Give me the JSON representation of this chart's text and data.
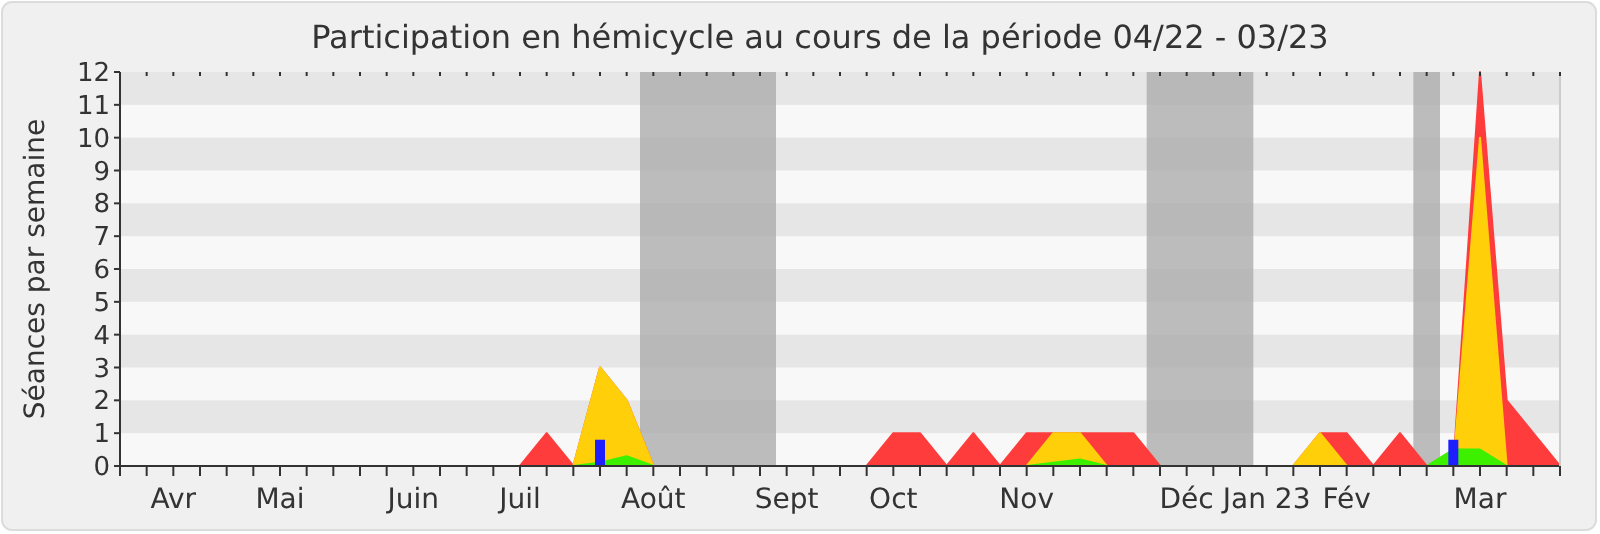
{
  "chart_data": {
    "type": "area",
    "title": "Participation en hémicycle au cours de la période 04/22 - 03/23",
    "ylabel": "Séances par semaine",
    "categories": [
      null,
      null,
      "Avr",
      null,
      null,
      null,
      "Mai",
      null,
      null,
      null,
      null,
      "Juin",
      null,
      null,
      null,
      "Juil",
      null,
      null,
      null,
      null,
      "Août",
      null,
      null,
      null,
      null,
      "Sept",
      null,
      null,
      null,
      "Oct",
      null,
      null,
      null,
      null,
      "Nov",
      null,
      null,
      null,
      null,
      null,
      "Déc",
      null,
      null,
      "Jan 23",
      null,
      null,
      "Fév",
      null,
      null,
      null,
      null,
      "Mar",
      null,
      null,
      null
    ],
    "ylim": [
      0,
      12
    ],
    "yticks": [
      0,
      1,
      2,
      3,
      4,
      5,
      6,
      7,
      8,
      9,
      10,
      11,
      12
    ],
    "series": [
      {
        "color": "#ff3c3c",
        "values": [
          0,
          0,
          0,
          0,
          0,
          0,
          0,
          0,
          0,
          0,
          0,
          0,
          0,
          0,
          0,
          0,
          1,
          0,
          3,
          2,
          0,
          0,
          0,
          0,
          0,
          0,
          0,
          0,
          0,
          1,
          1,
          0,
          1,
          0,
          1,
          1,
          1,
          1,
          1,
          0,
          0,
          0,
          0,
          0,
          0,
          1,
          1,
          0,
          1,
          0,
          0,
          12,
          2,
          1,
          0
        ]
      },
      {
        "color": "#ffd00a",
        "values": [
          0,
          0,
          0,
          0,
          0,
          0,
          0,
          0,
          0,
          0,
          0,
          0,
          0,
          0,
          0,
          0,
          0,
          0,
          3,
          2,
          0,
          0,
          0,
          0,
          0,
          0,
          0,
          0,
          0,
          0,
          0,
          0,
          0,
          0,
          0,
          1,
          1,
          0,
          0,
          0,
          0,
          0,
          0,
          0,
          0,
          1,
          0,
          0,
          0,
          0,
          0,
          10,
          0,
          0,
          0
        ]
      },
      {
        "color": "#3cf000",
        "values": [
          0,
          0,
          0,
          0,
          0,
          0,
          0,
          0,
          0,
          0,
          0,
          0,
          0,
          0,
          0,
          0,
          0,
          0,
          0.1,
          0.3,
          0,
          0,
          0,
          0,
          0,
          0,
          0,
          0,
          0,
          0,
          0,
          0,
          0,
          0,
          0,
          0.1,
          0.2,
          0,
          0,
          0,
          0,
          0,
          0,
          0,
          0,
          0,
          0,
          0,
          0,
          0,
          0.5,
          0.5,
          0,
          0,
          0
        ]
      },
      {
        "type": "bar",
        "color": "#1e1eff",
        "values": [
          null,
          null,
          null,
          null,
          null,
          null,
          null,
          null,
          null,
          null,
          null,
          null,
          null,
          null,
          null,
          null,
          null,
          null,
          0.8,
          null,
          null,
          null,
          null,
          null,
          null,
          null,
          null,
          null,
          null,
          null,
          null,
          null,
          null,
          null,
          null,
          null,
          null,
          null,
          null,
          null,
          null,
          null,
          null,
          null,
          null,
          null,
          null,
          null,
          null,
          null,
          0.8,
          null,
          null,
          null,
          null
        ]
      }
    ]
  }
}
